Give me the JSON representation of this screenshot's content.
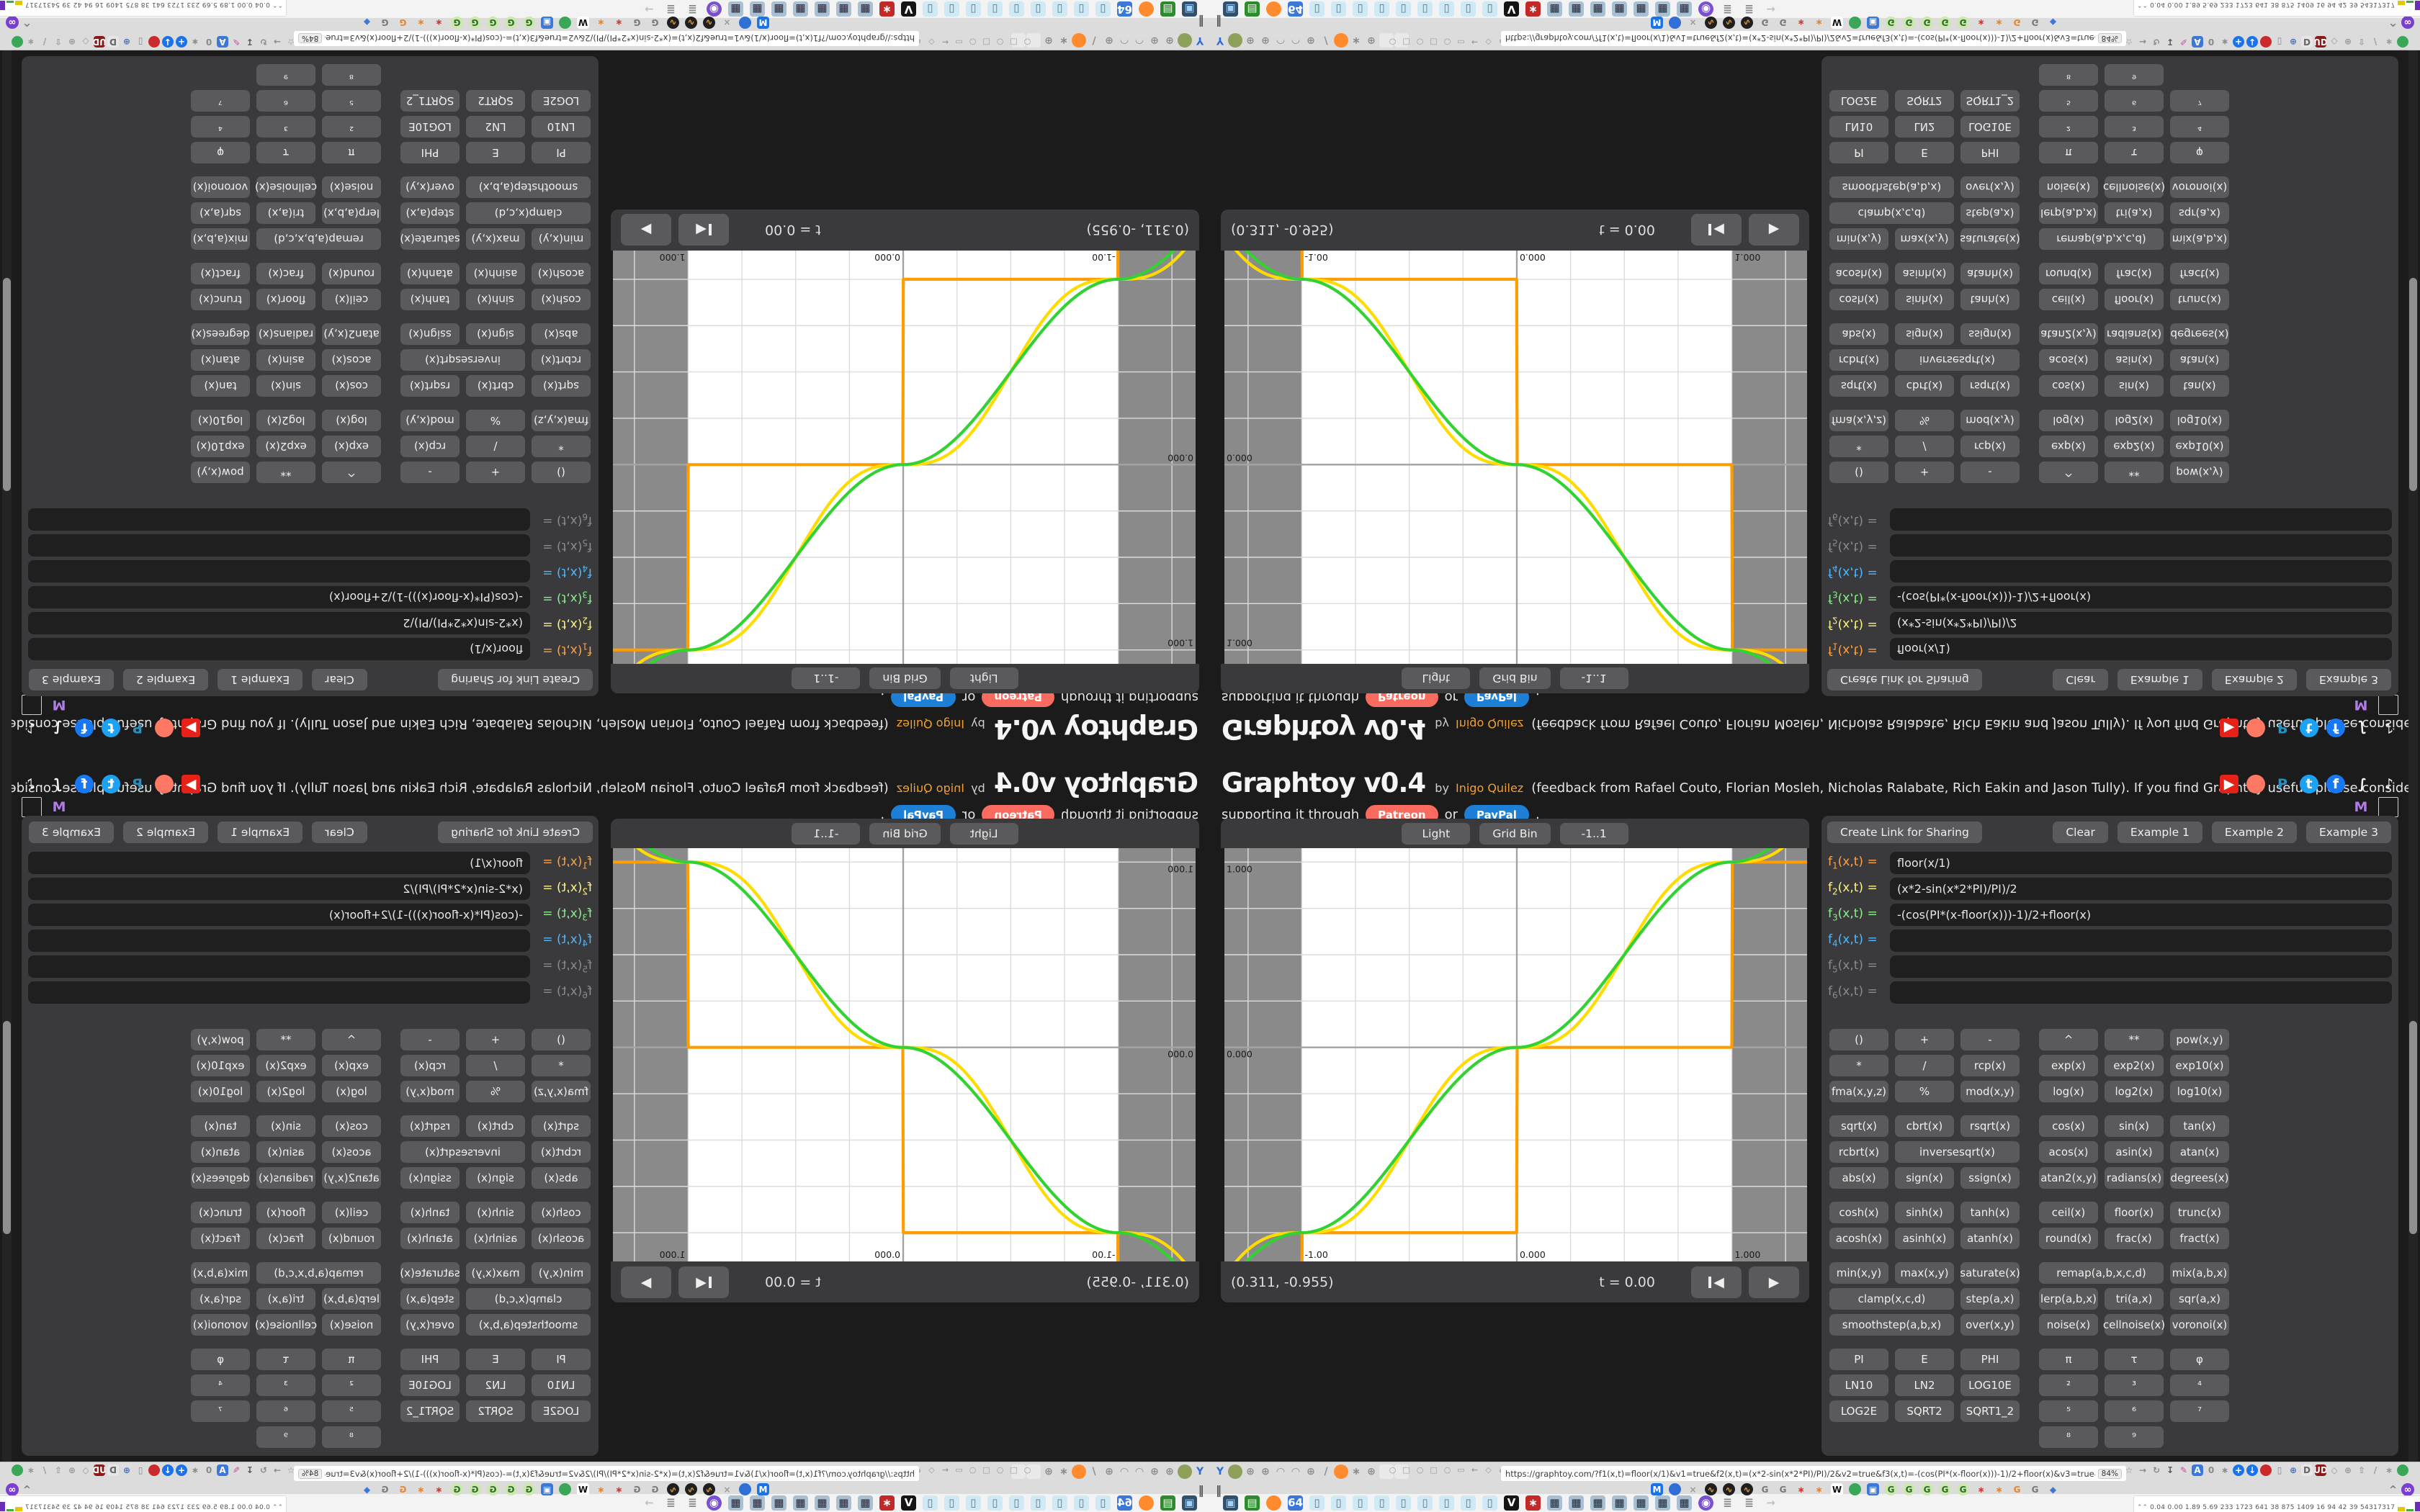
{
  "header": {
    "title": "Graphtoy v0.4",
    "by": "by",
    "author": "Inigo Quilez",
    "description": "(feedback from Rafael Couto, Florian Mosleh, Nicholas Ralabate, Rich Eakin and Jason Tully). If you find Graphtoy useful, please consider",
    "support_prefix": "supporting it through",
    "patreon": "Patreon",
    "or": "or",
    "paypal": "PayPal",
    "support_suffix": "."
  },
  "social_row1": [
    {
      "n": "youtube-icon",
      "g": "▶",
      "f": "#ffffff",
      "b": "#e62117",
      "s": "square"
    },
    {
      "n": "patreon-icon",
      "g": "",
      "f": "",
      "b": "#ff7864",
      "s": "circle"
    },
    {
      "n": "paypal-icon",
      "g": "P",
      "f": "#2790c3",
      "b": "",
      "s": "bare"
    },
    {
      "n": "twitter-icon",
      "g": "t",
      "f": "#ffffff",
      "b": "#1da1f2",
      "s": "circle"
    },
    {
      "n": "facebook-icon",
      "g": "f",
      "f": "#ffffff",
      "b": "#1877f2",
      "s": "circle"
    },
    {
      "n": "integral-icon",
      "g": "∫",
      "f": "#ffffff",
      "b": "",
      "s": "bare"
    },
    {
      "n": "tiktok-icon",
      "g": "♪",
      "f": "#ffffff",
      "b": "",
      "s": "bare"
    }
  ],
  "social_row2": [
    {
      "n": "mastodon-icon",
      "g": "M",
      "f": "#b07ce8",
      "b": "",
      "s": "bare"
    },
    {
      "n": "empty-box-icon",
      "g": "",
      "f": "",
      "b": "",
      "s": "box"
    }
  ],
  "graph": {
    "buttons": [
      {
        "label": "Light",
        "name": "light-mode-button"
      },
      {
        "label": "Grid Bin",
        "name": "grid-bin-button"
      },
      {
        "label": "-1..1",
        "name": "range-button"
      }
    ],
    "coords": "(0.311, -0.955)",
    "time": "t = 0.00",
    "rewind_glyph": "◀",
    "play_glyph": "▶"
  },
  "panel": {
    "create_link": "Create Link for Sharing",
    "clear": "Clear",
    "examples": [
      "Example 1",
      "Example 2",
      "Example 3"
    ]
  },
  "formulas": [
    {
      "base": "f",
      "sub": "1",
      "rest": "(x,t) =",
      "value": "floor(x/1)",
      "color": "#ffa23e"
    },
    {
      "base": "f",
      "sub": "2",
      "rest": "(x,t) =",
      "value": "(x*2-sin(x*2*PI)/PI)/2",
      "color": "#fff480"
    },
    {
      "base": "f",
      "sub": "3",
      "rest": "(x,t) =",
      "value": "-(cos(PI*(x-floor(x)))-1)/2+floor(x)",
      "color": "#89f089"
    },
    {
      "base": "f",
      "sub": "4",
      "rest": "(x,t) =",
      "value": "",
      "color": "#4db8ff"
    },
    {
      "base": "f",
      "sub": "5",
      "rest": "(x,t) =",
      "value": "",
      "color": "#8a8a8a"
    },
    {
      "base": "f",
      "sub": "6",
      "rest": "(x,t) =",
      "value": "",
      "color": "#8a8a8a"
    }
  ],
  "grid_rows": [
    {
      "gap": false,
      "cells": [
        {
          "t": "()",
          "c": 1
        },
        {
          "t": "+",
          "c": 2
        },
        {
          "t": "-",
          "c": 3
        },
        {
          "t": "^",
          "c": 4
        },
        {
          "t": "**",
          "c": 5
        },
        {
          "t": "pow(x,y)",
          "c": 6
        }
      ]
    },
    {
      "gap": false,
      "cells": [
        {
          "t": "*",
          "c": 1
        },
        {
          "t": "/",
          "c": 2
        },
        {
          "t": "rcp(x)",
          "c": 3
        },
        {
          "t": "exp(x)",
          "c": 4
        },
        {
          "t": "exp2(x)",
          "c": 5
        },
        {
          "t": "exp10(x)",
          "c": 6
        }
      ]
    },
    {
      "gap": false,
      "cells": [
        {
          "t": "fma(x,y,z)",
          "c": 1
        },
        {
          "t": "%",
          "c": 2
        },
        {
          "t": "mod(x,y)",
          "c": 3
        },
        {
          "t": "log(x)",
          "c": 4
        },
        {
          "t": "log2(x)",
          "c": 5
        },
        {
          "t": "log10(x)",
          "c": 6
        }
      ]
    },
    {
      "gap": true,
      "cells": [
        {
          "t": "sqrt(x)",
          "c": 1
        },
        {
          "t": "cbrt(x)",
          "c": 2
        },
        {
          "t": "rsqrt(x)",
          "c": 3
        },
        {
          "t": "cos(x)",
          "c": 4
        },
        {
          "t": "sin(x)",
          "c": 5
        },
        {
          "t": "tan(x)",
          "c": 6
        }
      ]
    },
    {
      "gap": false,
      "cells": [
        {
          "t": "rcbrt(x)",
          "c": 1
        },
        {
          "t": "inversesqrt(x)",
          "c": 2,
          "s": 2
        },
        {
          "t": "acos(x)",
          "c": 4
        },
        {
          "t": "asin(x)",
          "c": 5
        },
        {
          "t": "atan(x)",
          "c": 6
        }
      ]
    },
    {
      "gap": false,
      "cells": [
        {
          "t": "abs(x)",
          "c": 1
        },
        {
          "t": "sign(x)",
          "c": 2
        },
        {
          "t": "ssign(x)",
          "c": 3
        },
        {
          "t": "atan2(x,y)",
          "c": 4
        },
        {
          "t": "radians(x)",
          "c": 5
        },
        {
          "t": "degrees(x)",
          "c": 6
        }
      ]
    },
    {
      "gap": true,
      "cells": [
        {
          "t": "cosh(x)",
          "c": 1
        },
        {
          "t": "sinh(x)",
          "c": 2
        },
        {
          "t": "tanh(x)",
          "c": 3
        },
        {
          "t": "ceil(x)",
          "c": 4
        },
        {
          "t": "floor(x)",
          "c": 5
        },
        {
          "t": "trunc(x)",
          "c": 6
        }
      ]
    },
    {
      "gap": false,
      "cells": [
        {
          "t": "acosh(x)",
          "c": 1
        },
        {
          "t": "asinh(x)",
          "c": 2
        },
        {
          "t": "atanh(x)",
          "c": 3
        },
        {
          "t": "round(x)",
          "c": 4
        },
        {
          "t": "frac(x)",
          "c": 5
        },
        {
          "t": "fract(x)",
          "c": 6
        }
      ]
    },
    {
      "gap": true,
      "cells": [
        {
          "t": "min(x,y)",
          "c": 1
        },
        {
          "t": "max(x,y)",
          "c": 2
        },
        {
          "t": "saturate(x)",
          "c": 3
        },
        {
          "t": "remap(a,b,x,c,d)",
          "c": 4,
          "s": 2
        },
        {
          "t": "mix(a,b,x)",
          "c": 6
        }
      ]
    },
    {
      "gap": false,
      "cells": [
        {
          "t": "clamp(x,c,d)",
          "c": 1,
          "s": 2
        },
        {
          "t": "step(a,x)",
          "c": 3
        },
        {
          "t": "lerp(a,b,x)",
          "c": 4
        },
        {
          "t": "tri(a,x)",
          "c": 5
        },
        {
          "t": "sqr(a,x)",
          "c": 6
        }
      ]
    },
    {
      "gap": false,
      "cells": [
        {
          "t": "smoothstep(a,b,x)",
          "c": 1,
          "s": 2
        },
        {
          "t": "over(x,y)",
          "c": 3
        },
        {
          "t": "noise(x)",
          "c": 4
        },
        {
          "t": "cellnoise(x)",
          "c": 5
        },
        {
          "t": "voronoi(x)",
          "c": 6
        }
      ]
    },
    {
      "gap": true,
      "cells": [
        {
          "t": "PI",
          "c": 1
        },
        {
          "t": "E",
          "c": 2
        },
        {
          "t": "PHI",
          "c": 3
        },
        {
          "t": "π",
          "c": 4
        },
        {
          "t": "τ",
          "c": 5
        },
        {
          "t": "φ",
          "c": 6
        }
      ]
    },
    {
      "gap": false,
      "cells": [
        {
          "t": "LN10",
          "c": 1
        },
        {
          "t": "LN2",
          "c": 2
        },
        {
          "t": "LOG10E",
          "c": 3
        },
        {
          "t": "²",
          "c": 4
        },
        {
          "t": "³",
          "c": 5
        },
        {
          "t": "⁴",
          "c": 6
        }
      ]
    },
    {
      "gap": false,
      "cells": [
        {
          "t": "LOG2E",
          "c": 1
        },
        {
          "t": "SQRT2",
          "c": 2
        },
        {
          "t": "SQRT1_2",
          "c": 3
        },
        {
          "t": "⁵",
          "c": 4
        },
        {
          "t": "⁶",
          "c": 5
        },
        {
          "t": "⁷",
          "c": 6
        }
      ]
    },
    {
      "gap": false,
      "cells": [
        {
          "t": "⁸",
          "c": 4
        },
        {
          "t": "⁹",
          "c": 5
        }
      ]
    }
  ],
  "chart_data": {
    "type": "line",
    "title": "",
    "xlabel": "x",
    "ylabel": "y",
    "x_range": [
      -1.36,
      1.35
    ],
    "y_range": [
      -1.155,
      1.075
    ],
    "grid_step": 0.25,
    "shaded_outside_x": [
      -1,
      1
    ],
    "t": 0.0,
    "series": [
      {
        "name": "f1",
        "expr": "floor(x/1)",
        "color": "#ff9d00"
      },
      {
        "name": "f2",
        "expr": "(x*2-sin(x*2*PI)/PI)/2",
        "color": "#ffdc00"
      },
      {
        "name": "f3",
        "expr": "-(cos(PI*(x-floor(x)))-1)/2+floor(x)",
        "color": "#32d232"
      }
    ],
    "y_tick_labels": [
      {
        "v": 1,
        "t": "1.000"
      },
      {
        "v": 0,
        "t": "0.000"
      }
    ],
    "x_tick_labels": [
      {
        "v": -1,
        "t": "-1.00"
      },
      {
        "v": 0,
        "t": "0.000"
      },
      {
        "v": 1,
        "t": "1.000"
      }
    ],
    "background": "#ffffff",
    "band_color": "#8a8a8a",
    "grid_color": "#dcdcdc",
    "axis_color": "#a3a3a3",
    "label_color": "#1a1a1a"
  },
  "chrome": {
    "url": "https://graphtoy.com/?f1(x,t)=floor(x/1)&v1=true&f2(x,t)=(x*2-sin(x*2*PI)/PI)/2&v2=true&f3(x,t)=-(cos(PI*(x-floor(x)))-1)/2+floor(x)&v3=true&f4(x,t)=&v4=true&f5(x,t)=&v5=false",
    "zoom_badge": "84%",
    "stats": "0.04 0.00 1.89 5.69 233 1723 641 38 875 1409 16 94 42 39 54317317",
    "pause_glyph": "‖",
    "collapse_glyph": "^",
    "left_icons": [
      {
        "n": "pin-icon",
        "g": "Y",
        "f": "#2e6fd4",
        "b": "",
        "s": "bare"
      },
      {
        "n": "olive-dot-icon",
        "g": "",
        "f": "#ffffff",
        "b": "#8fa05a",
        "s": "circle"
      },
      {
        "n": "globe-icon",
        "g": "⊕",
        "f": "#8d8d8d",
        "b": "",
        "s": "bare"
      },
      {
        "n": "globe-icon",
        "g": "⊕",
        "f": "#8d8d8d",
        "b": "",
        "s": "bare"
      },
      {
        "n": "gauge-icon",
        "g": "◠",
        "f": "#8d8d8d",
        "b": "",
        "s": "bare"
      },
      {
        "n": "gauge-icon",
        "g": "◠",
        "f": "#8d8d8d",
        "b": "",
        "s": "bare"
      },
      {
        "n": "globe-icon",
        "g": "⊕",
        "f": "#8d8d8d",
        "b": "",
        "s": "bare"
      },
      {
        "n": "wrench-icon",
        "g": "/",
        "f": "#8d8d8d",
        "b": "",
        "s": "bare"
      },
      {
        "n": "firefox-icon",
        "g": "",
        "f": "#ffffff",
        "b": "#ff8b2e",
        "s": "circle"
      },
      {
        "n": "gear-icon",
        "g": "∗",
        "f": "#8d8d8d",
        "b": "",
        "s": "bare"
      },
      {
        "n": "globe-icon",
        "g": "⊕",
        "f": "#8d8d8d",
        "b": "",
        "s": "bare"
      },
      {
        "n": "placeholder-icon",
        "g": "",
        "f": "",
        "b": "#e9e9e9",
        "s": "square"
      },
      {
        "n": "placeholder-icon",
        "g": "",
        "f": "",
        "b": "#e9e9e9",
        "s": "square"
      }
    ],
    "nav_icons": [
      {
        "n": "nav-circle-icon",
        "g": "○"
      },
      {
        "n": "nav-square-icon",
        "g": "□"
      },
      {
        "n": "nav-circle-icon",
        "g": "○"
      },
      {
        "n": "nav-square-icon",
        "g": "□"
      },
      {
        "n": "nav-circle-icon",
        "g": "○"
      },
      {
        "n": "folder-icon",
        "g": "▭"
      },
      {
        "n": "back-icon",
        "g": "←"
      },
      {
        "n": "shield-icon",
        "g": "◇"
      },
      {
        "n": "lock-icon",
        "g": "⌂"
      }
    ],
    "url_icons": [
      {
        "n": "bookmark-star-icon",
        "g": "☆",
        "f": "#8a8a8a",
        "b": "",
        "s": "bare"
      },
      {
        "n": "forward-icon",
        "g": "→",
        "f": "#8a8a8a",
        "b": "",
        "s": "bare"
      },
      {
        "n": "reload-icon",
        "g": "↻",
        "f": "#8a8a8a",
        "b": "",
        "s": "bare"
      },
      {
        "n": "download-icon",
        "g": "↧",
        "f": "#555555",
        "b": "",
        "s": "bare"
      },
      {
        "n": "highlighter-icon",
        "g": "✎",
        "f": "#c2519b",
        "b": "",
        "s": "bare"
      },
      {
        "n": "translate-icon",
        "g": "A",
        "f": "#ffffff",
        "b": "#3b78d8",
        "s": "square"
      },
      {
        "n": "zero-badge-icon",
        "g": "0",
        "f": "#8a8a8a",
        "b": "",
        "s": "bare"
      },
      {
        "n": "gear-icon",
        "g": "∗",
        "f": "#8a8a8a",
        "b": "",
        "s": "bare"
      },
      {
        "n": "add-icon",
        "g": "+",
        "f": "#ffffff",
        "b": "#1a73e8",
        "s": "circle"
      },
      {
        "n": "down-circle-icon",
        "g": "↓",
        "f": "#ffffff",
        "b": "#1a73e8",
        "s": "circle"
      },
      {
        "n": "record-icon",
        "g": "",
        "f": "#ffffff",
        "b": "#cc2a2a",
        "s": "circle"
      },
      {
        "n": "trash-icon",
        "g": "▯",
        "f": "#8a8a8a",
        "b": "",
        "s": "bare"
      },
      {
        "n": "globe-icon",
        "g": "⊕",
        "f": "#4a6fb8",
        "b": "",
        "s": "bare"
      },
      {
        "n": "d-box-icon",
        "g": "D",
        "f": "#666666",
        "b": "#e6e6e6",
        "s": "square"
      },
      {
        "n": "ud-shield-icon",
        "g": "UD",
        "f": "#ffffff",
        "b": "#8b1a1a",
        "s": "square"
      },
      {
        "n": "shield-icon",
        "g": "◇",
        "f": "#9a9a9a",
        "b": "",
        "s": "bare"
      },
      {
        "n": "globe-icon",
        "g": "⊕",
        "f": "#9a9a9a",
        "b": "",
        "s": "bare"
      },
      {
        "n": "thumb-icon",
        "g": "⇧",
        "f": "#9a9a9a",
        "b": "",
        "s": "bare"
      },
      {
        "n": "wrench-icon",
        "g": "/",
        "f": "#9a9a9a",
        "b": "",
        "s": "bare"
      },
      {
        "n": "gear-icon",
        "g": "∗",
        "f": "#9a9a9a",
        "b": "",
        "s": "bare"
      },
      {
        "n": "green-dot-icon",
        "g": "",
        "f": "",
        "b": "#3aa757",
        "s": "circle"
      }
    ],
    "ext_icons": [
      {
        "n": "m-extension-icon",
        "g": "M",
        "f": "#ffffff",
        "b": "#1a73e8",
        "s": "square"
      },
      {
        "n": "drop-icon",
        "g": "",
        "f": "",
        "b": "#2f6fd6",
        "s": "circle"
      },
      {
        "n": "mute-icon",
        "g": "×",
        "f": "#9a9a9a",
        "b": "",
        "s": "bare"
      },
      {
        "n": "waveform-icon",
        "g": "∿",
        "f": "#e8a33d",
        "b": "#1f1f1f",
        "s": "circle",
        "r": 3
      },
      {
        "n": "google-icon",
        "g": "G",
        "f": "#777777",
        "b": "",
        "s": "bare",
        "r": 2
      },
      {
        "n": "red-flower-icon",
        "g": "∗",
        "f": "#cc3a2f",
        "b": "",
        "s": "bare"
      },
      {
        "n": "orange-flower-icon",
        "g": "∗",
        "f": "#e8842c",
        "b": "",
        "s": "bare"
      },
      {
        "n": "wikipedia-icon",
        "g": "W",
        "f": "#111111",
        "b": "#ffffff",
        "s": "square"
      },
      {
        "n": "green-circle-icon",
        "g": "",
        "f": "",
        "b": "#3aa757",
        "s": "circle"
      },
      {
        "n": "blue-cube-icon",
        "g": "▣",
        "f": "#ffffff",
        "b": "#3b78d8",
        "s": "square"
      },
      {
        "n": "google-circle-icon",
        "g": "G",
        "f": "#2d6b2d",
        "b": "#cde8ad",
        "s": "circle",
        "r": 5
      },
      {
        "n": "red-flower-icon",
        "g": "∗",
        "f": "#cc3a2f",
        "b": "",
        "s": "bare"
      },
      {
        "n": "orange-flower-icon",
        "g": "∗",
        "f": "#e8842c",
        "b": "",
        "s": "bare"
      },
      {
        "n": "google-icon",
        "g": "G",
        "f": "#e8842c",
        "b": "",
        "s": "bare"
      },
      {
        "n": "google-icon",
        "g": "G",
        "f": "#777777",
        "b": "",
        "s": "bare"
      },
      {
        "n": "cube-globe-icon",
        "g": "◆",
        "f": "#3b78d8",
        "b": "",
        "s": "bare"
      }
    ],
    "mask_icon": {
      "n": "mask-extension-icon",
      "g": "∞",
      "f": "#ffffff",
      "b": "#7a3fd0",
      "s": "circle"
    },
    "bookmark_icons": [
      {
        "n": "monitor-bookmark-icon",
        "g": "▣",
        "f": "#9fd1ff",
        "b": "#31506b",
        "s": "square"
      },
      {
        "n": "book-bookmark-icon",
        "g": "▤",
        "f": "#eaffea",
        "b": "#2d8a2d",
        "s": "square"
      },
      {
        "n": "firefox-bookmark-icon",
        "g": "",
        "f": "",
        "b": "#ff8b2e",
        "s": "circle"
      },
      {
        "n": "floppy-bookmark-icon",
        "g": "64",
        "f": "#ffffff",
        "b": "#3b78d8",
        "s": "square"
      },
      {
        "n": "notes-bookmark-icon",
        "g": "▯",
        "f": "#5a7a8a",
        "b": "#cfe9f5",
        "s": "square",
        "r": 9
      },
      {
        "n": "video-bookmark-icon",
        "g": "V",
        "f": "#ffffff",
        "b": "#141414",
        "s": "square"
      },
      {
        "n": "red-app-bookmark-icon",
        "g": "∗",
        "f": "#ffffff",
        "b": "#c22a2a",
        "s": "square"
      },
      {
        "n": "calculator-bookmark-icon",
        "g": "▦",
        "f": "#222233",
        "b": "#a9c0d2",
        "s": "square",
        "r": 7
      },
      {
        "n": "owl-bookmark-icon",
        "g": "◉",
        "f": "#ffffff",
        "b": "#7a4fd0",
        "s": "circle"
      },
      {
        "n": "scroll-bookmark-icon",
        "g": "≣",
        "f": "#8a8a8a",
        "b": "",
        "s": "bare",
        "r": 2
      },
      {
        "n": "send-bookmark-icon",
        "g": "→",
        "f": "#c0c0c0",
        "b": "",
        "s": "bare"
      }
    ],
    "spark": [
      {
        "c": "#e3c800",
        "h": 6
      },
      {
        "c": "#3fae3f",
        "h": 3
      },
      {
        "c": "#6a2fb8",
        "h": 13
      },
      {
        "c": "#cbb23a",
        "h": 8
      },
      {
        "c": "#8b4a13",
        "h": 9
      },
      {
        "c": "#b22222",
        "h": 7
      }
    ]
  }
}
